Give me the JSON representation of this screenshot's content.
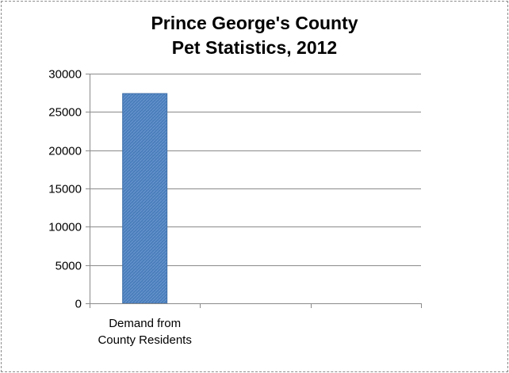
{
  "chart_data": {
    "type": "bar",
    "title": [
      "Prince George's County",
      "Pet Statistics, 2012"
    ],
    "categories": [
      [
        "Demand from",
        "County Residents"
      ],
      [
        "",
        ""
      ],
      [
        "",
        ""
      ]
    ],
    "values": [
      27400,
      null,
      null
    ],
    "ylim": [
      0,
      30000
    ],
    "yticks": [
      "0",
      "5000",
      "10000",
      "15000",
      "20000",
      "25000",
      "30000"
    ],
    "grid": true,
    "legend": "none",
    "bar_color": "#4a7ebb"
  }
}
